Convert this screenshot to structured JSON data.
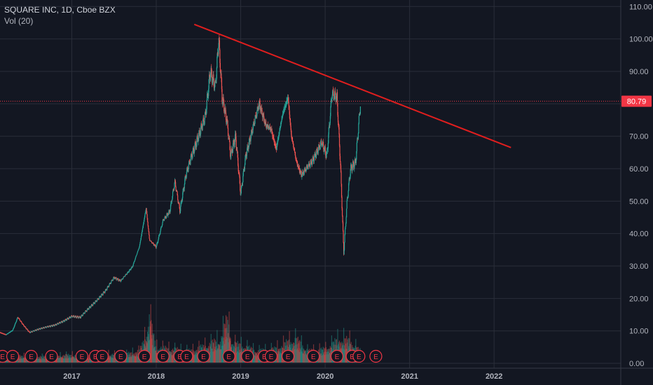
{
  "legend": {
    "title": "SQUARE INC, 1D, Cboe BZX",
    "volume": "Vol (20)"
  },
  "colors": {
    "background": "#131722",
    "grid": "#2a2e39",
    "up": "#26a69a",
    "down": "#ef5350",
    "trendline": "#e01e1e",
    "price_line": "#f23645",
    "earnings": "#f23645",
    "axis_text": "#b2b5be"
  },
  "chart_data": {
    "type": "candlestick",
    "symbol": "SQUARE INC",
    "interval": "1D",
    "exchange": "Cboe BZX",
    "x_tick_labels": [
      "2017",
      "2018",
      "2019",
      "2020",
      "2021",
      "2022"
    ],
    "x_ticks": [
      2017.0,
      2018.0,
      2019.0,
      2020.0,
      2021.0,
      2022.0
    ],
    "x_range": [
      2016.15,
      2023.5
    ],
    "y_tick_labels": [
      "0.00",
      "10.00",
      "20.00",
      "30.00",
      "40.00",
      "50.00",
      "60.00",
      "70.00",
      "80.00",
      "90.00",
      "100.00",
      "110.00"
    ],
    "y_ticks": [
      0,
      10,
      20,
      30,
      40,
      50,
      60,
      70,
      80,
      90,
      100,
      110
    ],
    "y_range": [
      -1.5,
      112
    ],
    "last_price": 80.79,
    "last_price_label": "80.79",
    "price_path": [
      [
        2016.15,
        9.5
      ],
      [
        2016.22,
        8.8
      ],
      [
        2016.3,
        10.2
      ],
      [
        2016.36,
        14.2
      ],
      [
        2016.42,
        12.0
      ],
      [
        2016.5,
        9.5
      ],
      [
        2016.6,
        10.5
      ],
      [
        2016.7,
        11.2
      ],
      [
        2016.8,
        11.8
      ],
      [
        2016.9,
        13.0
      ],
      [
        2017.0,
        14.5
      ],
      [
        2017.1,
        14.2
      ],
      [
        2017.2,
        17.0
      ],
      [
        2017.3,
        19.5
      ],
      [
        2017.4,
        22.5
      ],
      [
        2017.5,
        26.5
      ],
      [
        2017.58,
        25.5
      ],
      [
        2017.66,
        28.0
      ],
      [
        2017.72,
        30.0
      ],
      [
        2017.8,
        36.0
      ],
      [
        2017.88,
        48.0
      ],
      [
        2017.92,
        38.0
      ],
      [
        2018.0,
        36.0
      ],
      [
        2018.08,
        44.0
      ],
      [
        2018.16,
        47.0
      ],
      [
        2018.22,
        56.0
      ],
      [
        2018.28,
        47.0
      ],
      [
        2018.35,
        58.0
      ],
      [
        2018.42,
        64.0
      ],
      [
        2018.5,
        70.0
      ],
      [
        2018.58,
        76.0
      ],
      [
        2018.64,
        90.0
      ],
      [
        2018.7,
        85.0
      ],
      [
        2018.74,
        100.0
      ],
      [
        2018.78,
        82.0
      ],
      [
        2018.84,
        74.0
      ],
      [
        2018.88,
        64.0
      ],
      [
        2018.94,
        70.0
      ],
      [
        2019.0,
        52.0
      ],
      [
        2019.06,
        64.0
      ],
      [
        2019.14,
        72.0
      ],
      [
        2019.22,
        80.0
      ],
      [
        2019.3,
        73.0
      ],
      [
        2019.36,
        72.0
      ],
      [
        2019.42,
        66.0
      ],
      [
        2019.5,
        77.0
      ],
      [
        2019.56,
        82.0
      ],
      [
        2019.6,
        70.0
      ],
      [
        2019.66,
        62.0
      ],
      [
        2019.72,
        58.0
      ],
      [
        2019.78,
        60.0
      ],
      [
        2019.84,
        62.0
      ],
      [
        2019.9,
        65.0
      ],
      [
        2019.96,
        68.0
      ],
      [
        2020.02,
        64.0
      ],
      [
        2020.08,
        83.0
      ],
      [
        2020.14,
        82.0
      ],
      [
        2020.18,
        62.0
      ],
      [
        2020.22,
        34.0
      ],
      [
        2020.26,
        50.0
      ],
      [
        2020.3,
        60.0
      ],
      [
        2020.36,
        62.0
      ],
      [
        2020.42,
        80.79
      ]
    ],
    "volume_millions": [
      [
        2016.2,
        4.0
      ],
      [
        2016.4,
        3.5
      ],
      [
        2016.6,
        3.0
      ],
      [
        2016.8,
        3.5
      ],
      [
        2017.0,
        4.0
      ],
      [
        2017.2,
        3.5
      ],
      [
        2017.4,
        4.5
      ],
      [
        2017.6,
        4.0
      ],
      [
        2017.8,
        6.0
      ],
      [
        2017.88,
        14.0
      ],
      [
        2017.92,
        23.0
      ],
      [
        2018.0,
        8.0
      ],
      [
        2018.2,
        7.0
      ],
      [
        2018.4,
        6.0
      ],
      [
        2018.6,
        9.0
      ],
      [
        2018.76,
        12.0
      ],
      [
        2018.84,
        22.5
      ],
      [
        2018.9,
        10.0
      ],
      [
        2019.0,
        9.0
      ],
      [
        2019.2,
        6.0
      ],
      [
        2019.4,
        7.0
      ],
      [
        2019.58,
        11.0
      ],
      [
        2019.66,
        12.0
      ],
      [
        2019.8,
        6.0
      ],
      [
        2020.0,
        7.0
      ],
      [
        2020.16,
        12.0
      ],
      [
        2020.22,
        12.0
      ],
      [
        2020.3,
        11.0
      ],
      [
        2020.4,
        6.5
      ]
    ],
    "trendline": [
      [
        2018.45,
        104.5
      ],
      [
        2022.2,
        66.5
      ]
    ],
    "earnings_markers": {
      "label": "E",
      "dates": [
        2016.18,
        2016.3,
        2016.52,
        2016.76,
        2017.12,
        2017.28,
        2017.36,
        2017.58,
        2017.86,
        2018.08,
        2018.28,
        2018.36,
        2018.56,
        2018.86,
        2019.08,
        2019.28,
        2019.36,
        2019.56,
        2019.86,
        2020.14,
        2020.32,
        2020.4,
        2020.6
      ]
    },
    "grid": true
  }
}
